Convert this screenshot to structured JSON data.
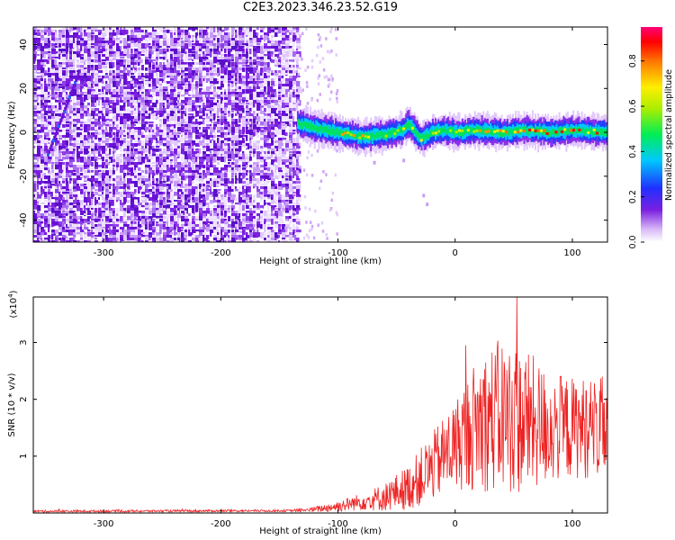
{
  "title": "C2E3.2023.346.23.52.G19",
  "chart_data": [
    {
      "type": "heatmap",
      "name": "spectrogram",
      "xlabel": "Height of straight line (km)",
      "ylabel": "Frequency (Hz)",
      "xlim": [
        -360,
        130
      ],
      "ylim": [
        -50,
        48
      ],
      "xticks": [
        -300,
        -200,
        -100,
        0,
        100
      ],
      "xtick_labels": [
        "-300",
        "-200",
        "-100",
        "0",
        "100"
      ],
      "yticks": [
        -40,
        -20,
        0,
        20,
        40
      ],
      "ytick_labels": [
        "-40",
        "-20",
        "0",
        "20",
        "40"
      ],
      "noise_region_x": [
        -360,
        -135
      ],
      "signal_band": {
        "x": [
          -135,
          -120,
          -100,
          -80,
          -60,
          -45,
          -40,
          -30,
          -20,
          -10,
          0,
          20,
          40,
          60,
          80,
          100,
          130
        ],
        "freq": [
          4,
          2,
          0,
          -2,
          -1,
          1,
          4,
          -3,
          0,
          1,
          0,
          1,
          0,
          1,
          0,
          1,
          0
        ]
      },
      "colorbar": {
        "label": "Normalized spectral amplitude",
        "range": [
          0,
          0.95
        ],
        "ticks": [
          0,
          0.2,
          0.4,
          0.6,
          0.8
        ],
        "tick_labels": [
          "0.0",
          "0.2",
          "0.4",
          "0.6",
          "0.8"
        ]
      }
    },
    {
      "type": "line",
      "name": "snr",
      "xlabel": "Height of straight line (km)",
      "ylabel": "SNR (10 * v/v)",
      "y_multiplier": "(x10",
      "y_multiplier_exp": "4",
      "xlim": [
        -360,
        130
      ],
      "ylim": [
        0,
        3.8
      ],
      "xticks": [
        -300,
        -200,
        -100,
        0,
        100
      ],
      "xtick_labels": [
        "-300",
        "-200",
        "-100",
        "0",
        "100"
      ],
      "yticks": [
        1,
        2,
        3
      ],
      "ytick_labels": [
        "1",
        "2",
        "3"
      ],
      "envelope": {
        "x": [
          -360,
          -140,
          -120,
          -100,
          -80,
          -60,
          -40,
          -20,
          -10,
          0,
          20,
          40,
          60,
          80,
          100,
          130
        ],
        "mean": [
          0.03,
          0.04,
          0.06,
          0.12,
          0.2,
          0.28,
          0.45,
          0.8,
          1.0,
          1.2,
          1.6,
          1.7,
          1.6,
          1.5,
          1.5,
          1.5
        ],
        "spread": [
          0.02,
          0.02,
          0.05,
          0.1,
          0.15,
          0.25,
          0.4,
          0.6,
          0.7,
          0.8,
          1.2,
          1.4,
          1.3,
          1.0,
          0.9,
          0.9
        ]
      },
      "color": "#ee2222"
    }
  ]
}
